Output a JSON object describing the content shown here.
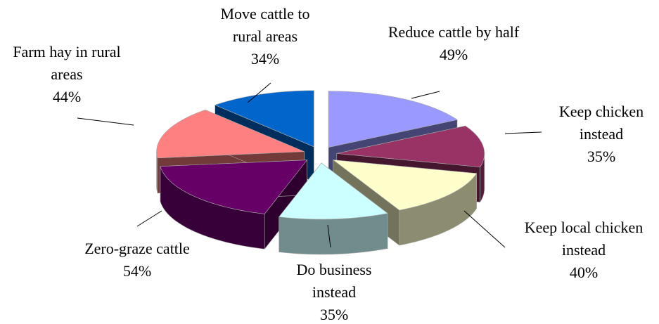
{
  "chart_data": {
    "type": "pie",
    "categories": [
      "Reduce cattle by half",
      "Keep chicken instead",
      "Keep local chicken instead",
      "Do business instead",
      "Zero-graze cattle",
      "Farm hay in rural areas",
      "Move cattle to rural areas"
    ],
    "values": [
      49,
      35,
      40,
      35,
      54,
      44,
      34
    ],
    "value_labels": [
      "49%",
      "35%",
      "40%",
      "35%",
      "54%",
      "44%",
      "34%"
    ],
    "colors": [
      "#9999ff",
      "#993366",
      "#ffffcc",
      "#ccffff",
      "#660066",
      "#ff8080",
      "#0066cc"
    ]
  }
}
